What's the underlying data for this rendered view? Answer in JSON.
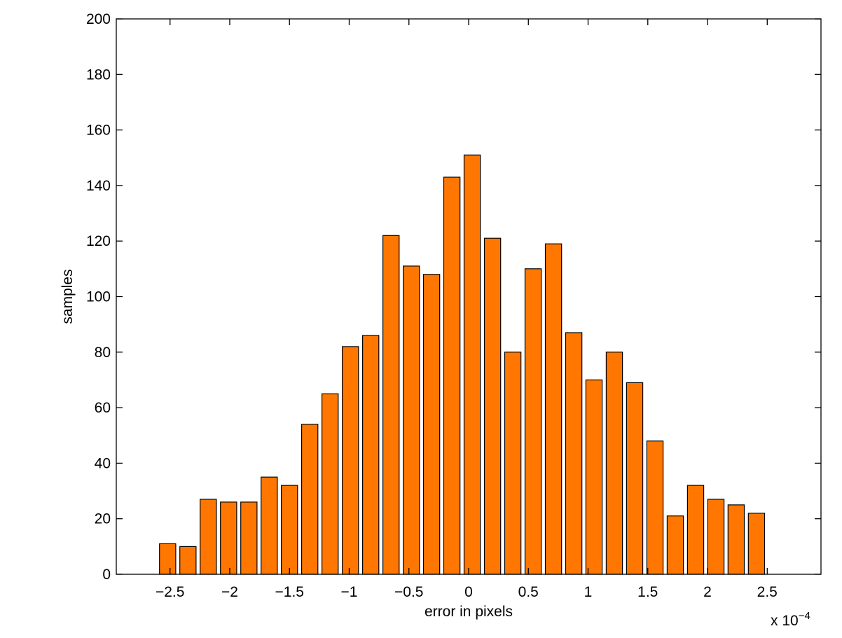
{
  "chart_data": {
    "type": "bar",
    "xlabel": "error in pixels",
    "ylabel": "samples",
    "x_multiplier_label": {
      "base": "x 10",
      "exponent": "−4"
    },
    "xlim": [
      -2.95,
      2.95
    ],
    "ylim": [
      0,
      200
    ],
    "grid": false,
    "box": true,
    "bar_color": "#ff7700",
    "xticks": [
      {
        "value": -2.5,
        "label": "−2.5"
      },
      {
        "value": -2,
        "label": "−2"
      },
      {
        "value": -1.5,
        "label": "−1.5"
      },
      {
        "value": -1,
        "label": "−1"
      },
      {
        "value": -0.5,
        "label": "−0.5"
      },
      {
        "value": 0,
        "label": "0"
      },
      {
        "value": 0.5,
        "label": "0.5"
      },
      {
        "value": 1,
        "label": "1"
      },
      {
        "value": 1.5,
        "label": "1.5"
      },
      {
        "value": 2,
        "label": "2"
      },
      {
        "value": 2.5,
        "label": "2.5"
      }
    ],
    "yticks": [
      {
        "value": 0,
        "label": "0"
      },
      {
        "value": 20,
        "label": "20"
      },
      {
        "value": 40,
        "label": "40"
      },
      {
        "value": 60,
        "label": "60"
      },
      {
        "value": 80,
        "label": "80"
      },
      {
        "value": 100,
        "label": "100"
      },
      {
        "value": 120,
        "label": "120"
      },
      {
        "value": 140,
        "label": "140"
      },
      {
        "value": 160,
        "label": "160"
      },
      {
        "value": 180,
        "label": "180"
      },
      {
        "value": 200,
        "label": "200"
      }
    ],
    "x": [
      -2.52,
      -2.35,
      -2.18,
      -2.01,
      -1.84,
      -1.67,
      -1.5,
      -1.33,
      -1.16,
      -0.99,
      -0.82,
      -0.65,
      -0.48,
      -0.31,
      -0.14,
      0.03,
      0.2,
      0.37,
      0.54,
      0.71,
      0.88,
      1.05,
      1.22,
      1.39,
      1.56,
      1.73,
      1.9,
      2.07,
      2.24,
      2.41
    ],
    "values": [
      11,
      10,
      27,
      26,
      26,
      35,
      32,
      54,
      65,
      82,
      86,
      122,
      111,
      108,
      143,
      151,
      121,
      80,
      110,
      119,
      87,
      70,
      80,
      69,
      48,
      21,
      32,
      27,
      25,
      22
    ]
  }
}
